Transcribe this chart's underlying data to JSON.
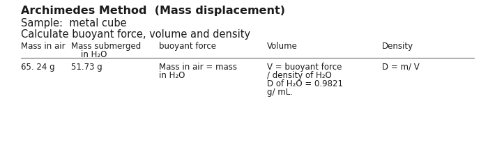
{
  "title": "Archimedes Method  (Mass displacement)",
  "line2": "Sample:  metal cube",
  "line3": "Calculate buoyant force, volume and density",
  "header_col1": "Mass in air",
  "header_col2a": "Mass submerged",
  "header_col2b": "in H₂O",
  "header_col3": "buoyant force",
  "header_col4": "Volume",
  "header_col5": "Density",
  "data_col1": "65. 24 g",
  "data_col2": "51.73 g",
  "data_col3_line1": "Mass in air = mass",
  "data_col3_line2": "in H₂O",
  "data_col4_line1": "V = buoyant force",
  "data_col4_line2": "/ density of H₂O",
  "data_col4_line3": "D of H₂O = 0.9821",
  "data_col4_line4": "g/ mL.",
  "data_col5": "D = m/ V",
  "bg_color": "#ffffff",
  "text_color": "#1a1a1a",
  "title_fontsize": 11.5,
  "body_fontsize": 10.5,
  "small_fontsize": 8.5
}
